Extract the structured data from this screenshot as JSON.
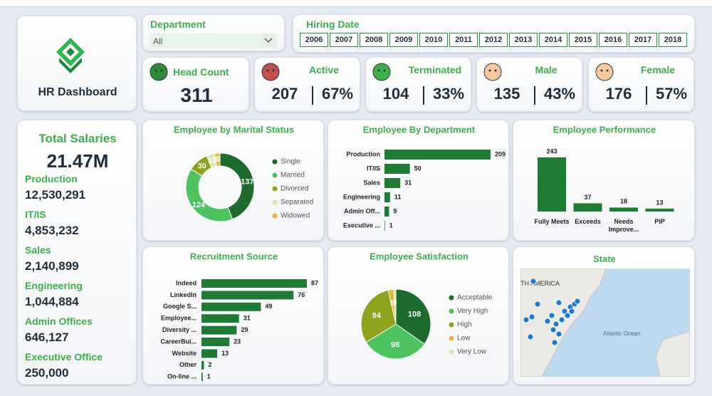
{
  "header": {
    "title": "HR Dashboard"
  },
  "filters": {
    "department": {
      "label": "Department",
      "value": "All"
    },
    "hiring_date": {
      "label": "Hiring Date",
      "years": [
        "2006",
        "2007",
        "2008",
        "2009",
        "2010",
        "2011",
        "2012",
        "2013",
        "2014",
        "2015",
        "2016",
        "2017",
        "2018"
      ]
    }
  },
  "kpis": [
    {
      "label": "Head Count",
      "value": "311"
    },
    {
      "label": "Active",
      "value": "207",
      "percent": "67%"
    },
    {
      "label": "Terminated",
      "value": "104",
      "percent": "33%"
    },
    {
      "label": "Male",
      "value": "135",
      "percent": "43%"
    },
    {
      "label": "Female",
      "value": "176",
      "percent": "57%"
    }
  ],
  "salaries": {
    "title": "Total Salaries",
    "total": "21.47M",
    "items": [
      {
        "name": "Production",
        "value": "12,530,291"
      },
      {
        "name": "IT/IS",
        "value": "4,853,232"
      },
      {
        "name": "Sales",
        "value": "2,140,899"
      },
      {
        "name": "Engineering",
        "value": "1,044,884"
      },
      {
        "name": "Admin Offices",
        "value": "646,127"
      },
      {
        "name": "Executive Office",
        "value": "250,000"
      }
    ]
  },
  "chart_data": [
    {
      "type": "donut",
      "title": "Employee by Marital Status",
      "categories": [
        "Single",
        "Married",
        "Divorced",
        "Separated",
        "Widowed"
      ],
      "values": [
        137,
        124,
        30,
        12,
        8
      ],
      "colors": [
        "#1e6b2e",
        "#4cc35e",
        "#8ea21e",
        "#dbe9ad",
        "#e6b83a"
      ]
    },
    {
      "type": "bar",
      "horizontal": true,
      "title": "Employee By Department",
      "categories": [
        "Production",
        "IT/IS",
        "Sales",
        "Engineering",
        "Admin Off...",
        "Executive ..."
      ],
      "values": [
        209,
        50,
        31,
        11,
        9,
        1
      ],
      "color": "#1e7b34"
    },
    {
      "type": "bar",
      "horizontal": false,
      "title": "Employee Performance",
      "categories": [
        "Fully Meets",
        "Exceeds",
        "Needs Improve...",
        "PIP"
      ],
      "values": [
        243,
        37,
        18,
        13
      ],
      "color": "#1e7b34"
    },
    {
      "type": "bar",
      "horizontal": true,
      "title": "Recruitment Source",
      "categories": [
        "Indeed",
        "LinkedIn",
        "Google S...",
        "Employee...",
        "Diversity ...",
        "CareerBui...",
        "Website",
        "Other",
        "On-line ..."
      ],
      "values": [
        87,
        76,
        49,
        31,
        29,
        23,
        13,
        2,
        1
      ],
      "color": "#1e7b34"
    },
    {
      "type": "pie",
      "title": "Employee Satisfaction",
      "categories": [
        "Acceptable",
        "Very High",
        "High",
        "Low",
        "Very Low"
      ],
      "values": [
        108,
        98,
        94,
        8,
        3
      ],
      "colors": [
        "#1e6b2e",
        "#4cc35e",
        "#8ea21e",
        "#e6b83a",
        "#dbe9ad"
      ]
    }
  ],
  "map": {
    "title": "State",
    "labels": [
      "TH AMERICA",
      "Atlantic Ocean"
    ]
  }
}
